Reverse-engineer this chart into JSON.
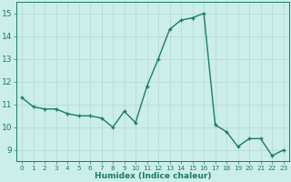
{
  "xlabel": "Humidex (Indice chaleur)",
  "ylabel": "",
  "bg_color": "#cceee8",
  "line_color": "#1a7a6e",
  "grid_color": "#b0d8d0",
  "x_values": [
    0,
    1,
    2,
    3,
    4,
    5,
    6,
    7,
    8,
    9,
    10,
    11,
    12,
    13,
    14,
    15,
    16,
    17,
    18,
    19,
    20,
    21,
    22,
    23
  ],
  "y_values": [
    11.3,
    10.9,
    10.8,
    10.8,
    10.6,
    10.5,
    10.5,
    10.4,
    10.0,
    10.7,
    10.2,
    11.8,
    13.0,
    14.3,
    14.7,
    14.8,
    15.0,
    10.1,
    9.8,
    9.15,
    9.5,
    9.5,
    8.75,
    9.0
  ],
  "ylim": [
    8.5,
    15.5
  ],
  "xlim": [
    -0.5,
    23.5
  ],
  "yticks": [
    9,
    10,
    11,
    12,
    13,
    14,
    15
  ],
  "xticks": [
    0,
    1,
    2,
    3,
    4,
    5,
    6,
    7,
    8,
    9,
    10,
    11,
    12,
    13,
    14,
    15,
    16,
    17,
    18,
    19,
    20,
    21,
    22,
    23
  ],
  "xtick_labels": [
    "0",
    "1",
    "2",
    "3",
    "4",
    "5",
    "6",
    "7",
    "8",
    "9",
    "10",
    "11",
    "12",
    "13",
    "14",
    "15",
    "16",
    "17",
    "18",
    "19",
    "20",
    "21",
    "22",
    "23"
  ]
}
